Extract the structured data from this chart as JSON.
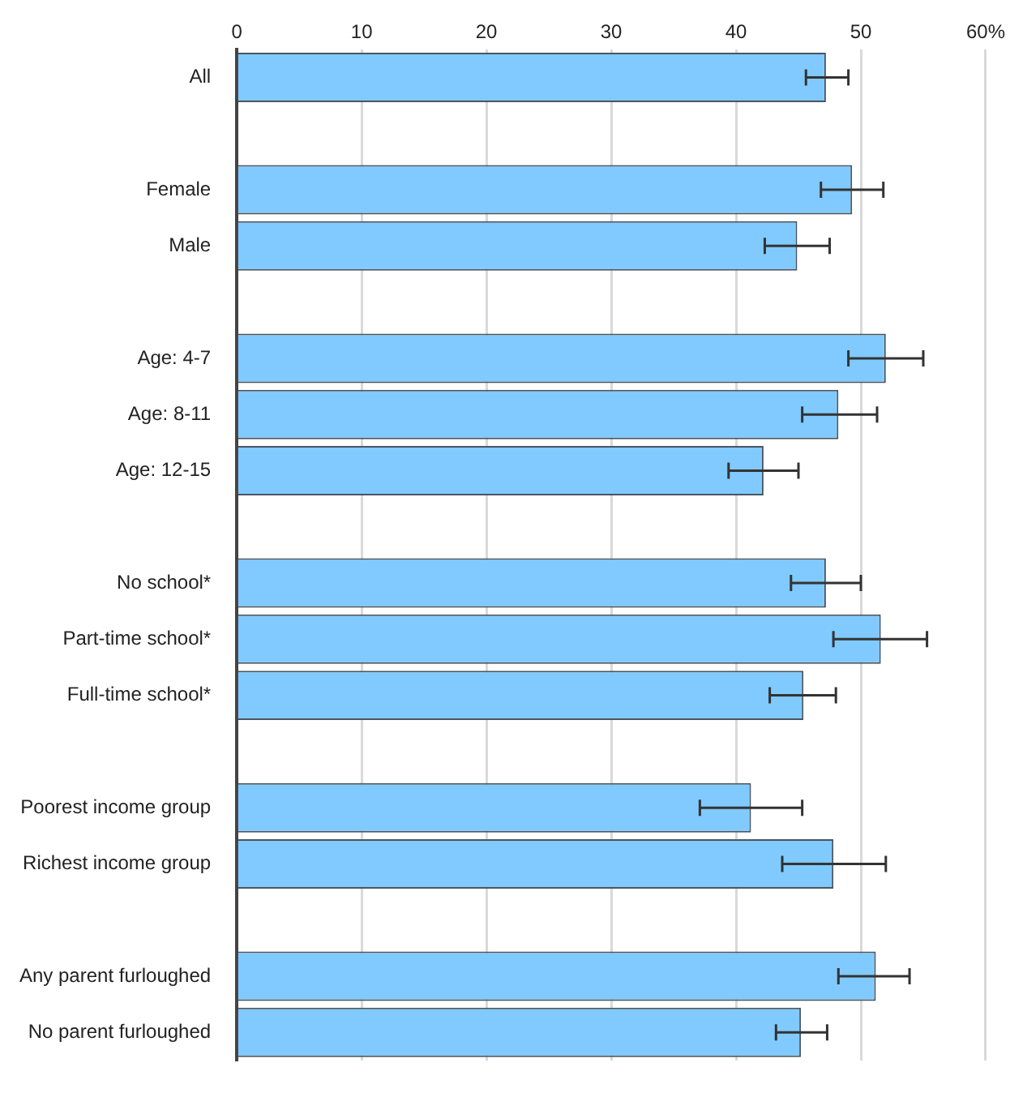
{
  "chart_data": {
    "type": "bar",
    "orientation": "horizontal",
    "categories": [
      "All",
      null,
      "Female",
      "Male",
      null,
      "Age: 4-7",
      "Age: 8-11",
      "Age: 12-15",
      null,
      "No school*",
      "Part-time school*",
      "Full-time school*",
      null,
      "Poorest income group",
      "Richest income group",
      null,
      "Any parent furloughed",
      "No parent furloughed"
    ],
    "values": [
      47.2,
      null,
      49.3,
      44.9,
      null,
      52.0,
      48.2,
      42.2,
      null,
      47.2,
      51.6,
      45.4,
      null,
      41.2,
      47.8,
      null,
      51.2,
      45.2
    ],
    "errors": [
      [
        45.6,
        49.0
      ],
      null,
      [
        46.8,
        51.8
      ],
      [
        42.3,
        47.5
      ],
      null,
      [
        49.0,
        55.0
      ],
      [
        45.3,
        51.3
      ],
      [
        39.4,
        45.0
      ],
      null,
      [
        44.4,
        50.0
      ],
      [
        47.8,
        55.3
      ],
      [
        42.7,
        48.0
      ],
      null,
      [
        37.1,
        45.3
      ],
      [
        43.7,
        52.0
      ],
      null,
      [
        48.2,
        53.9
      ],
      [
        43.2,
        47.3
      ]
    ],
    "color": "#80caff",
    "xlim": [
      0,
      60
    ],
    "xticks": [
      0,
      10,
      20,
      30,
      40,
      50,
      {
        "value": 60,
        "label": "60%"
      }
    ],
    "grid": "x",
    "legend": false
  }
}
